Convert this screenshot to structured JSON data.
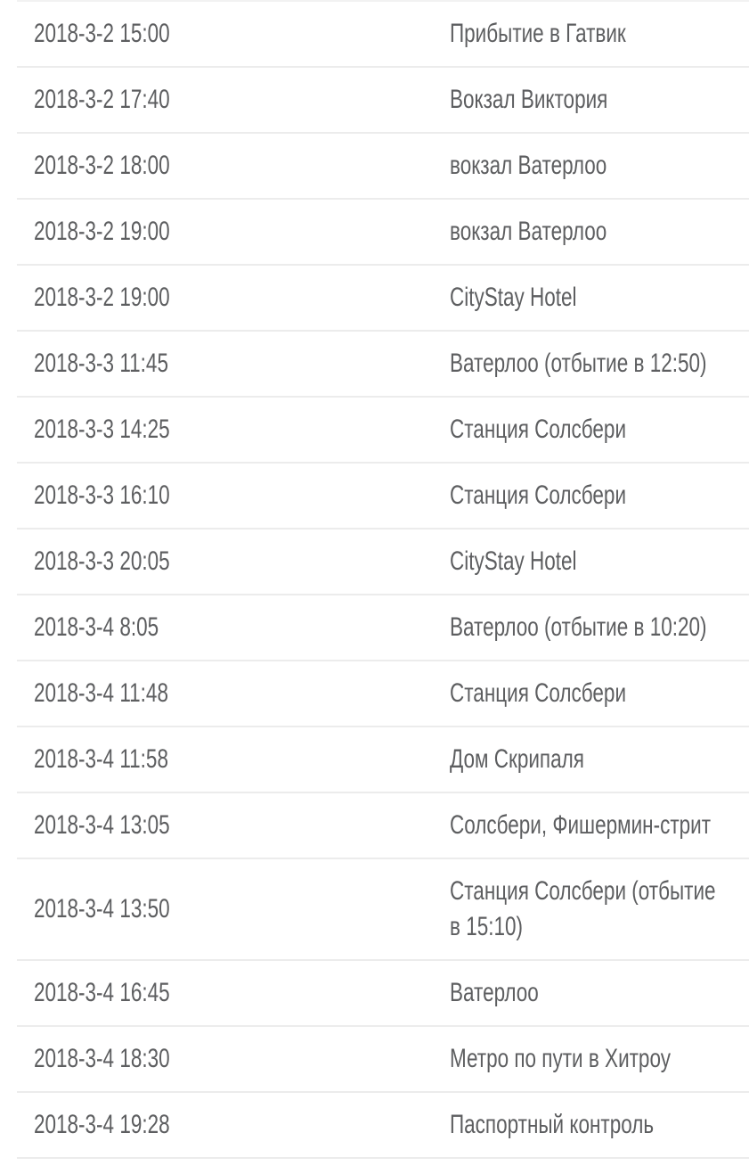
{
  "colors": {
    "background": "#ffffff",
    "text": "#5d5e60",
    "divider": "#ececec"
  },
  "table": {
    "columns": [
      "time",
      "location"
    ],
    "rows": [
      {
        "time": "2018-3-2 15:00",
        "location": "Прибытие в Гатвик"
      },
      {
        "time": "2018-3-2 17:40",
        "location": "Вокзал Виктория"
      },
      {
        "time": "2018-3-2 18:00",
        "location": "вокзал Ватерлоо"
      },
      {
        "time": "2018-3-2 19:00",
        "location": "вокзал Ватерлоо"
      },
      {
        "time": "2018-3-2 19:00",
        "location": "CityStay Hotel"
      },
      {
        "time": "2018-3-3 11:45",
        "location": "Ватерлоо (отбытие в 12:50)"
      },
      {
        "time": "2018-3-3 14:25",
        "location": "Станция Солсбери"
      },
      {
        "time": "2018-3-3 16:10",
        "location": "Станция Солсбери"
      },
      {
        "time": "2018-3-3 20:05",
        "location": "CityStay Hotel"
      },
      {
        "time": "2018-3-4 8:05",
        "location": "Ватерлоо (отбытие в 10:20)"
      },
      {
        "time": "2018-3-4 11:48",
        "location": "Станция Солсбери"
      },
      {
        "time": "2018-3-4 11:58",
        "location": "Дом Скрипаля"
      },
      {
        "time": "2018-3-4 13:05",
        "location": "Солсбери, Фишермин-стрит"
      },
      {
        "time": "2018-3-4 13:50",
        "location": "Станция Солсбери (отбытие в 15:10)"
      },
      {
        "time": "2018-3-4 16:45",
        "location": "Ватерлоо"
      },
      {
        "time": "2018-3-4 18:30",
        "location": "Метро по пути в Хитроу"
      },
      {
        "time": "2018-3-4 19:28",
        "location": "Паспортный контроль"
      }
    ]
  }
}
